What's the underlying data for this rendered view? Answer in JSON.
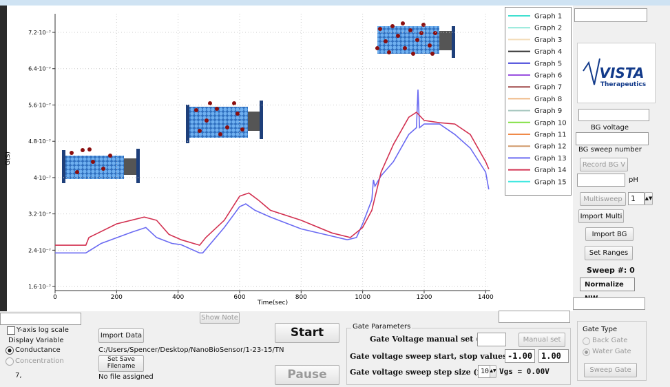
{
  "chart_data": {
    "type": "line",
    "y_label": "G(S)",
    "x_label": "Time(sec)",
    "xlim": [
      0,
      1415
    ],
    "ylim": [
      1.51e-07,
      7.61e-07
    ],
    "xticks": [
      0,
      200,
      400,
      600,
      800,
      1000,
      1200,
      1400
    ],
    "yticks": [
      {
        "value": 1.6e-07,
        "label": "1.6·10⁻⁷"
      },
      {
        "value": 2.4e-07,
        "label": "2.4·10⁻⁷"
      },
      {
        "value": 3.2e-07,
        "label": "3.2·10⁻⁷"
      },
      {
        "value": 4e-07,
        "label": "4·10⁻⁷"
      },
      {
        "value": 4.8e-07,
        "label": "4.8·10⁻⁷"
      },
      {
        "value": 5.6e-07,
        "label": "5.6·10⁻⁷"
      },
      {
        "value": 6.4e-07,
        "label": "6.4·10⁻⁷"
      },
      {
        "value": 7.2e-07,
        "label": "7.2·10⁻⁷"
      }
    ],
    "grid": true,
    "series": [
      {
        "name": "Graph 1",
        "color": "#40e0d0"
      },
      {
        "name": "Graph 2",
        "color": "#8fe8d8"
      },
      {
        "name": "Graph 3",
        "color": "#f3dcb8"
      },
      {
        "name": "Graph 4",
        "color": "#333333"
      },
      {
        "name": "Graph 5",
        "color": "#3a3ad8"
      },
      {
        "name": "Graph 6",
        "color": "#9a50e0"
      },
      {
        "name": "Graph 7",
        "color": "#a04848"
      },
      {
        "name": "Graph 8",
        "color": "#efb884"
      },
      {
        "name": "Graph 9",
        "color": "#a8c8c0"
      },
      {
        "name": "Graph 10",
        "color": "#80e040"
      },
      {
        "name": "Graph 11",
        "color": "#f08a48"
      },
      {
        "name": "Graph 12",
        "color": "#d09868"
      },
      {
        "name": "Graph 13",
        "color": "#6a6af2",
        "x": [
          0,
          100,
          150,
          250,
          295,
          330,
          380,
          410,
          470,
          480,
          550,
          600,
          620,
          650,
          700,
          800,
          900,
          950,
          980,
          1000,
          1030,
          1035,
          1040,
          1060,
          1100,
          1150,
          1175,
          1180,
          1185,
          1200,
          1250,
          1300,
          1350,
          1400,
          1410
        ],
        "values": [
          2.34e-07,
          2.34e-07,
          2.55e-07,
          2.8e-07,
          2.9e-07,
          2.68e-07,
          2.55e-07,
          2.52e-07,
          2.34e-07,
          2.34e-07,
          2.9e-07,
          3.36e-07,
          3.42e-07,
          3.28e-07,
          3.13e-07,
          2.87e-07,
          2.71e-07,
          2.63e-07,
          2.68e-07,
          2.98e-07,
          3.51e-07,
          3.95e-07,
          3.81e-07,
          4.04e-07,
          4.35e-07,
          4.95e-07,
          5.1e-07,
          5.94e-07,
          5.1e-07,
          5.18e-07,
          5.18e-07,
          4.95e-07,
          4.65e-07,
          4.12e-07,
          3.74e-07
        ]
      },
      {
        "name": "Graph 14",
        "color": "#d23050",
        "x": [
          0,
          100,
          110,
          200,
          290,
          330,
          370,
          410,
          470,
          490,
          550,
          600,
          630,
          660,
          700,
          800,
          900,
          960,
          1000,
          1030,
          1060,
          1100,
          1150,
          1175,
          1200,
          1250,
          1300,
          1350,
          1400,
          1410
        ],
        "values": [
          2.51e-07,
          2.51e-07,
          2.68e-07,
          2.98e-07,
          3.13e-07,
          3.06e-07,
          2.75e-07,
          2.63e-07,
          2.51e-07,
          2.68e-07,
          3.06e-07,
          3.59e-07,
          3.66e-07,
          3.51e-07,
          3.28e-07,
          3.06e-07,
          2.78e-07,
          2.68e-07,
          2.9e-07,
          3.28e-07,
          4.12e-07,
          4.73e-07,
          5.33e-07,
          5.44e-07,
          5.26e-07,
          5.21e-07,
          5.18e-07,
          4.95e-07,
          4.35e-07,
          4.19e-07
        ]
      },
      {
        "name": "Graph 15",
        "color": "#40e8e0"
      }
    ]
  },
  "side_panel": {
    "logo_name": "VISTA",
    "logo_sub": "Therapeutics",
    "bg_voltage": "BG voltage",
    "bg_sweep_number": "BG sweep number",
    "record_bg": "Record BG V",
    "ph": "pH",
    "multisweep": "Multisweep",
    "multisweep_count": "1",
    "import_multi": "Import Multi",
    "import_bg": "Import BG",
    "set_ranges": "Set Ranges",
    "sweep_number": "Sweep #: 0",
    "normalize": "Normalize NW"
  },
  "bottom": {
    "show_note": "Show Note",
    "log_scale": "Y-axis log scale",
    "display_variable": "Display Variable",
    "conductance": "Conductance",
    "concentration": "Concentration",
    "status": "7,",
    "import_data": "Import Data",
    "path": "C:/Users/Spencer/Desktop/NanoBioSensor/1-23-15/TN",
    "set_save_filename": "Set Save Filename",
    "no_file": "No file assigned",
    "start": "Start",
    "pause": "Pause"
  },
  "gate_parameters": {
    "title": "Gate Parameters",
    "manual_label": "Gate Voltage manual set (V)",
    "manual_button": "Manual set",
    "sweep_label": "Gate voltage sweep start, stop values (V)",
    "sweep_start": "-1.00",
    "sweep_stop": "1.00",
    "step_label": "Gate voltage sweep step size (mV)",
    "step_value": "10",
    "vgs": "Vgs = 0.00V"
  },
  "gate_type": {
    "title": "Gate Type",
    "back_gate": "Back Gate",
    "water_gate": "Water Gate",
    "sweep_gate": "Sweep Gate"
  }
}
